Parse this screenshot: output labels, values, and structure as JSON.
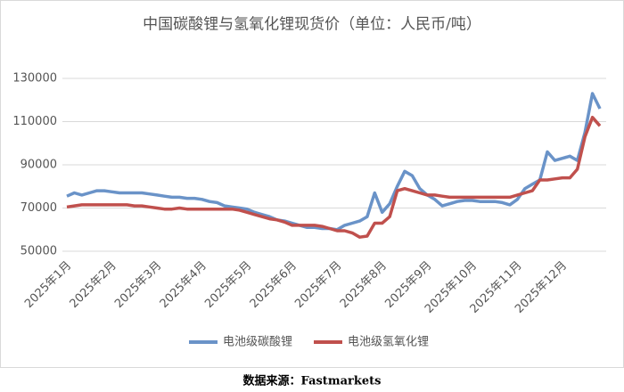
{
  "chart_data": {
    "type": "line",
    "title": "中国碳酸锂与氢氧化锂现货价（单位：人民币/吨）",
    "categories": [
      "2025年1月",
      null,
      null,
      null,
      null,
      null,
      "2025年2月",
      null,
      null,
      null,
      null,
      null,
      "2025年3月",
      null,
      null,
      null,
      null,
      null,
      "2025年4月",
      null,
      null,
      null,
      null,
      null,
      "2025年5月",
      null,
      null,
      null,
      null,
      null,
      "2025年6月",
      null,
      null,
      null,
      null,
      null,
      "2025年7月",
      null,
      null,
      null,
      null,
      null,
      "2025年8月",
      null,
      null,
      null,
      null,
      null,
      "2025年9月",
      null,
      null,
      null,
      null,
      null,
      "2025年10月",
      null,
      null,
      null,
      null,
      null,
      "2025年11月",
      null,
      null,
      null,
      null,
      null,
      "2025年12月",
      null,
      null,
      null,
      null,
      null
    ],
    "series": [
      {
        "name": "电池级碳酸锂",
        "color": "#6a93c8",
        "values": [
          75500,
          77000,
          76000,
          77000,
          78000,
          78000,
          77500,
          77000,
          77000,
          77000,
          77000,
          76500,
          76000,
          75500,
          75000,
          75000,
          74500,
          74500,
          74000,
          73000,
          72500,
          71000,
          70500,
          70000,
          69500,
          68000,
          67000,
          66000,
          64500,
          64000,
          63000,
          62000,
          61000,
          61000,
          60500,
          60500,
          60000,
          62000,
          63000,
          64000,
          66000,
          77000,
          68000,
          72000,
          80000,
          87000,
          85000,
          79000,
          76000,
          74000,
          71000,
          72000,
          73000,
          73500,
          73500,
          73000,
          73000,
          73000,
          72500,
          71500,
          74000,
          79000,
          81000,
          83000,
          96000,
          92000,
          93000,
          94000,
          92000,
          105000,
          123000,
          116000
        ]
      },
      {
        "name": "电池级氢氧化锂",
        "color": "#c0504d",
        "values": [
          70500,
          71000,
          71500,
          71500,
          71500,
          71500,
          71500,
          71500,
          71500,
          71000,
          71000,
          70500,
          70000,
          69500,
          69500,
          70000,
          69500,
          69500,
          69500,
          69500,
          69500,
          69500,
          69500,
          69000,
          68000,
          67000,
          66000,
          65000,
          64500,
          63500,
          62000,
          62000,
          62000,
          62000,
          61500,
          60500,
          59500,
          59500,
          58500,
          56500,
          57000,
          63000,
          63000,
          66000,
          78000,
          79000,
          78000,
          77000,
          76000,
          76000,
          75500,
          75000,
          75000,
          75000,
          75000,
          75000,
          75000,
          75000,
          75000,
          75000,
          76000,
          77000,
          78000,
          83000,
          83000,
          83500,
          84000,
          84000,
          88000,
          103000,
          112000,
          108000
        ]
      }
    ],
    "ylim": [
      50000,
      130000
    ],
    "yticks": [
      50000,
      70000,
      90000,
      110000,
      130000
    ],
    "grid": true,
    "legend": "bottom",
    "source": "数据来源：Fastmarkets"
  }
}
